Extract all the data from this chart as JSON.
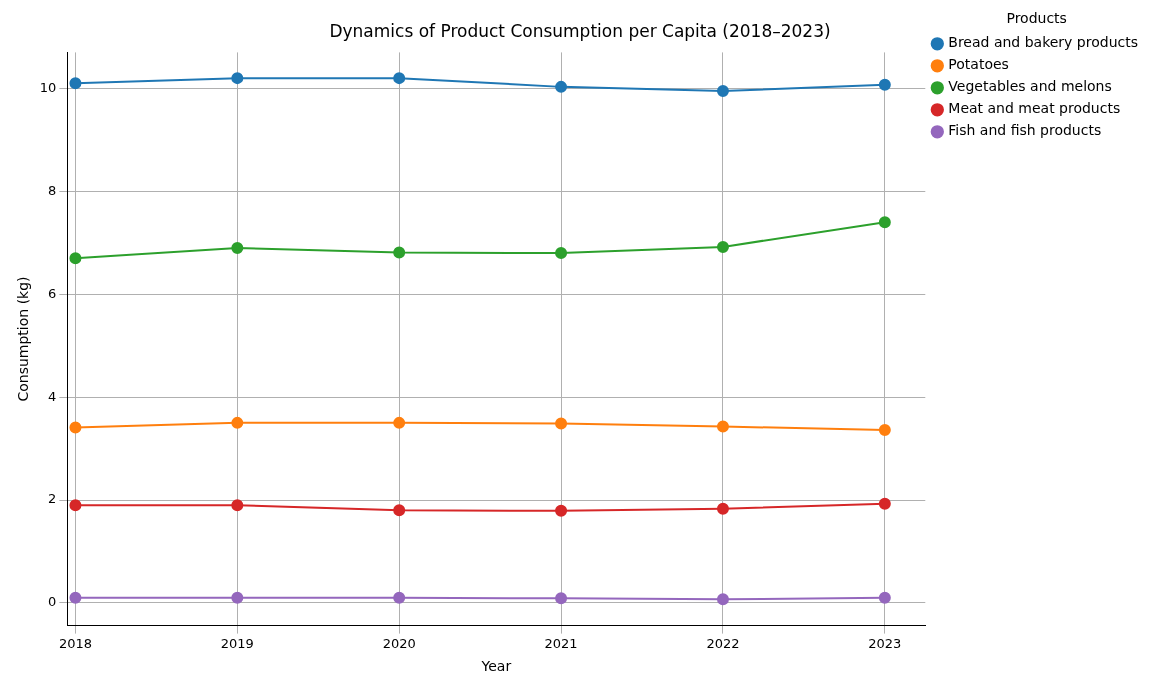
{
  "chart_data": {
    "type": "line",
    "title": "Dynamics of Product Consumption per Capita (2018–2023)",
    "xlabel": "Year",
    "ylabel": "Consumption (kg)",
    "legend_title": "Products",
    "x": [
      2018,
      2019,
      2020,
      2021,
      2022,
      2023
    ],
    "series": [
      {
        "name": "Bread and bakery products",
        "color": "#1f77b4",
        "values": [
          10.1,
          10.2,
          10.2,
          10.03,
          9.95,
          10.07
        ]
      },
      {
        "name": "Potatoes",
        "color": "#ff7f0e",
        "values": [
          3.41,
          3.5,
          3.5,
          3.49,
          3.43,
          3.36
        ]
      },
      {
        "name": "Vegetables and melons",
        "color": "#2ca02c",
        "values": [
          6.7,
          6.9,
          6.81,
          6.8,
          6.92,
          7.4
        ]
      },
      {
        "name": "Meat and meat products",
        "color": "#d62728",
        "values": [
          1.9,
          1.9,
          1.8,
          1.79,
          1.83,
          1.93
        ]
      },
      {
        "name": "Fish and fish products",
        "color": "#9467bd",
        "values": [
          0.1,
          0.1,
          0.1,
          0.09,
          0.07,
          0.1
        ]
      }
    ],
    "xlim": [
      2017.95,
      2023.25
    ],
    "xticks": [
      2018,
      2019,
      2020,
      2021,
      2022,
      2023
    ],
    "ylim": [
      -0.44,
      10.7
    ],
    "yticks": [
      0,
      2,
      4,
      6,
      8,
      10
    ],
    "grid": true,
    "legend": "right",
    "marker": "circle",
    "line_style": "solid"
  }
}
